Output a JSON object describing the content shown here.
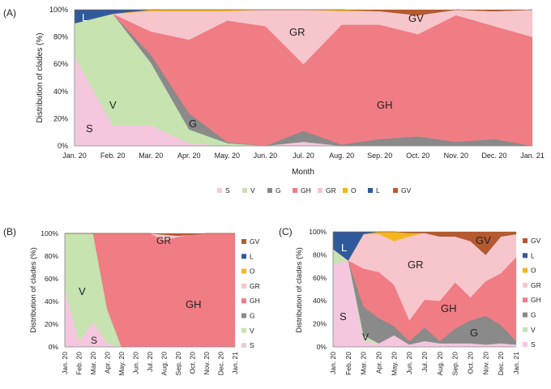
{
  "figure": {
    "colors": {
      "S": "#f4c7df",
      "V": "#c6e3b0",
      "G": "#8a8a8a",
      "GH": "#f07c84",
      "GR": "#f6c6cc",
      "O": "#f5b51b",
      "L": "#2e5a9c",
      "GV": "#b55a2e"
    },
    "clade_order_bottom_to_top": [
      "S",
      "V",
      "G",
      "GH",
      "GR",
      "O",
      "L",
      "GV"
    ]
  },
  "chart_data": [
    {
      "panel": "(A)",
      "type": "area",
      "stacked": "percent",
      "title": "",
      "xlabel": "Month",
      "ylabel": "Distribution of clades (%)",
      "ylim": [
        0,
        100
      ],
      "yticks": [
        "0%",
        "20%",
        "40%",
        "60%",
        "80%",
        "100%"
      ],
      "categories": [
        "Jan. 20",
        "Feb. 20",
        "Mar. 20",
        "Apr. 20",
        "May. 20",
        "Jun. 20",
        "Jul. 20",
        "Aug. 20",
        "Sep. 20",
        "Oct. 20",
        "Nov. 20",
        "Dec. 20",
        "Jan. 21"
      ],
      "legend": [
        "S",
        "V",
        "G",
        "GH",
        "GR",
        "O",
        "L",
        "GV"
      ],
      "series": [
        {
          "name": "S",
          "values": [
            66,
            15,
            15,
            2,
            0,
            0,
            3,
            0,
            0,
            0,
            0,
            0,
            0
          ]
        },
        {
          "name": "V",
          "values": [
            24,
            82,
            46,
            10,
            2,
            0,
            0,
            0,
            0,
            0,
            0,
            0,
            0
          ]
        },
        {
          "name": "G",
          "values": [
            0,
            0,
            6,
            12,
            1,
            0,
            8,
            1,
            5,
            7,
            3,
            5,
            0
          ]
        },
        {
          "name": "GH",
          "values": [
            0,
            0,
            17,
            54,
            89,
            88,
            49,
            88,
            84,
            75,
            93,
            83,
            80
          ]
        },
        {
          "name": "GR",
          "values": [
            0,
            0,
            15,
            21,
            7,
            12,
            40,
            10,
            10,
            14,
            4,
            11,
            20
          ]
        },
        {
          "name": "O",
          "values": [
            0,
            0,
            1,
            1,
            1,
            0,
            0,
            1,
            0,
            0,
            0,
            0,
            0
          ]
        },
        {
          "name": "L",
          "values": [
            10,
            3,
            0,
            0,
            0,
            0,
            0,
            0,
            0,
            0,
            0,
            0,
            0
          ]
        },
        {
          "name": "GV",
          "values": [
            0,
            0,
            0,
            0,
            0,
            0,
            0,
            0,
            1,
            4,
            0,
            1,
            0
          ]
        }
      ],
      "annotations": [
        "L",
        "V",
        "S",
        "G",
        "GR",
        "GH",
        "GV"
      ]
    },
    {
      "panel": "(B)",
      "type": "area",
      "stacked": "percent",
      "title": "",
      "xlabel": "",
      "ylabel": "Distribution of clades (%)",
      "ylim": [
        0,
        100
      ],
      "yticks": [
        "0%",
        "20%",
        "40%",
        "60%",
        "80%",
        "100%"
      ],
      "categories": [
        "Jan. 20",
        "Feb. 20",
        "Mar. 20",
        "Apr. 20",
        "May. 20",
        "Jun. 20",
        "Jul. 20",
        "Aug. 20",
        "Sep. 20",
        "Oct. 20",
        "Nov. 20",
        "Dec. 20",
        "Jan. 21"
      ],
      "legend": [
        "GV",
        "L",
        "O",
        "GR",
        "GH",
        "G",
        "V",
        "S"
      ],
      "series": [
        {
          "name": "S",
          "values": [
            50,
            5,
            22,
            3,
            0,
            0,
            0,
            0,
            0,
            0,
            0,
            0,
            0
          ]
        },
        {
          "name": "V",
          "values": [
            50,
            95,
            78,
            30,
            0,
            0,
            0,
            0,
            0,
            0,
            0,
            0,
            0
          ]
        },
        {
          "name": "G",
          "values": [
            0,
            0,
            0,
            0,
            0,
            0,
            0,
            0,
            0,
            0,
            0,
            0,
            0
          ]
        },
        {
          "name": "GH",
          "values": [
            0,
            0,
            0,
            67,
            100,
            100,
            100,
            94,
            97,
            99,
            100,
            100,
            100
          ]
        },
        {
          "name": "GR",
          "values": [
            0,
            0,
            0,
            0,
            0,
            0,
            0,
            5,
            1,
            0,
            0,
            0,
            0
          ]
        },
        {
          "name": "O",
          "values": [
            0,
            0,
            0,
            0,
            0,
            0,
            0,
            0,
            0,
            0,
            0,
            0,
            0
          ]
        },
        {
          "name": "L",
          "values": [
            0,
            0,
            0,
            0,
            0,
            0,
            0,
            0,
            0,
            0,
            0,
            0,
            0
          ]
        },
        {
          "name": "GV",
          "values": [
            0,
            0,
            0,
            0,
            0,
            0,
            0,
            1,
            2,
            1,
            0,
            0,
            0
          ]
        }
      ],
      "annotations": [
        "GR",
        "V",
        "GH",
        "S"
      ]
    },
    {
      "panel": "(C)",
      "type": "area",
      "stacked": "percent",
      "title": "",
      "xlabel": "",
      "ylabel": "Distribution of clades (%)",
      "ylim": [
        0,
        100
      ],
      "yticks": [
        "0%",
        "20%",
        "40%",
        "60%",
        "80%",
        "100%"
      ],
      "categories": [
        "Jan. 20",
        "Feb. 20",
        "Mar. 20",
        "Apr. 20",
        "May. 20",
        "Jun. 20",
        "Jul. 20",
        "Aug. 20",
        "Sep. 20",
        "Oct. 20",
        "Nov. 20",
        "Dec. 20",
        "Jan. 21"
      ],
      "legend": [
        "GV",
        "L",
        "O",
        "GR",
        "GH",
        "G",
        "V",
        "S"
      ],
      "series": [
        {
          "name": "S",
          "values": [
            72,
            75,
            5,
            3,
            10,
            2,
            5,
            3,
            3,
            3,
            2,
            3,
            2
          ]
        },
        {
          "name": "V",
          "values": [
            13,
            0,
            5,
            0,
            0,
            0,
            0,
            0,
            0,
            0,
            0,
            0,
            0
          ]
        },
        {
          "name": "G",
          "values": [
            0,
            0,
            25,
            22,
            8,
            3,
            12,
            2,
            13,
            20,
            25,
            16,
            3
          ]
        },
        {
          "name": "GH",
          "values": [
            0,
            0,
            33,
            40,
            36,
            18,
            24,
            35,
            40,
            20,
            30,
            45,
            73
          ]
        },
        {
          "name": "GR",
          "values": [
            0,
            0,
            30,
            33,
            38,
            73,
            58,
            56,
            40,
            49,
            23,
            32,
            20
          ]
        },
        {
          "name": "O",
          "values": [
            0,
            0,
            0,
            2,
            8,
            3,
            0,
            0,
            0,
            0,
            0,
            0,
            0
          ]
        },
        {
          "name": "L",
          "values": [
            15,
            25,
            2,
            0,
            0,
            0,
            0,
            0,
            0,
            0,
            0,
            0,
            0
          ]
        },
        {
          "name": "GV",
          "values": [
            0,
            0,
            0,
            0,
            0,
            1,
            1,
            4,
            4,
            8,
            20,
            4,
            2
          ]
        }
      ],
      "annotations": [
        "L",
        "GV",
        "GR",
        "S",
        "GH",
        "G",
        "V"
      ]
    }
  ]
}
